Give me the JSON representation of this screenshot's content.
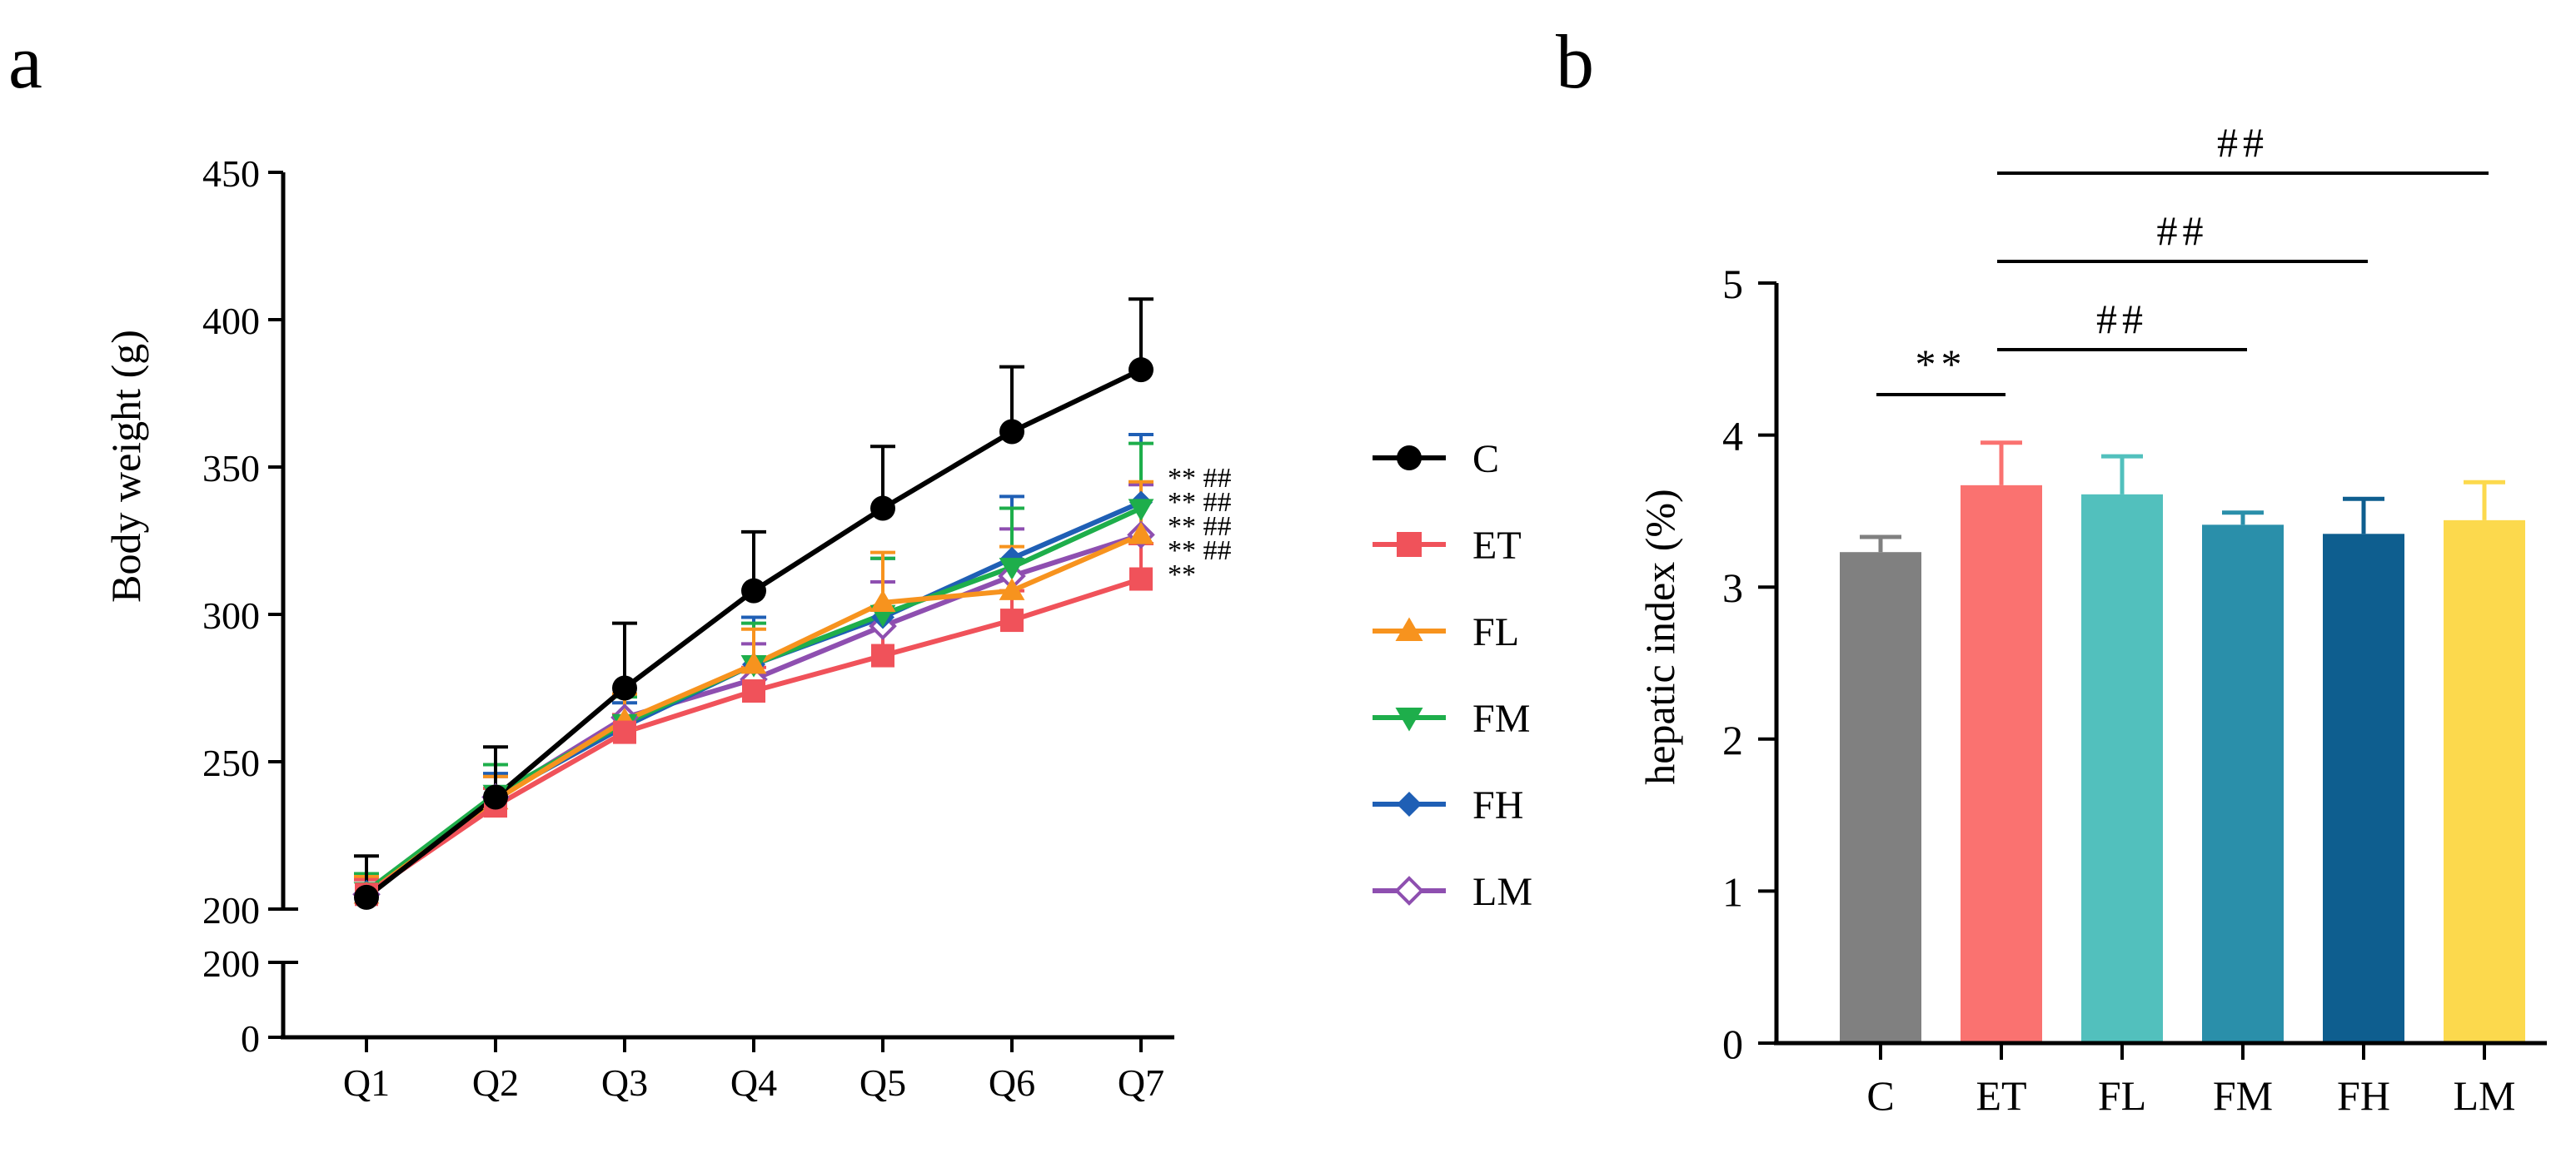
{
  "panel_a": {
    "label": "a",
    "chart_data": {
      "type": "line",
      "xlabel": "",
      "ylabel": "Body weight (g)",
      "categories": [
        "Q1",
        "Q2",
        "Q3",
        "Q4",
        "Q5",
        "Q6",
        "Q7"
      ],
      "ylim_upper": [
        200,
        450
      ],
      "ylim_lower": [
        0,
        200
      ],
      "yticks_upper": [
        "200",
        "250",
        "300",
        "350",
        "400",
        "450"
      ],
      "yticks_lower": [
        "0",
        "200"
      ],
      "legend_position": "right",
      "series": [
        {
          "name": "C",
          "color": "#000000",
          "marker": "circle",
          "values": [
            204,
            238,
            275,
            308,
            336,
            362,
            383
          ],
          "errors": [
            14,
            17,
            22,
            20,
            21,
            22,
            24
          ]
        },
        {
          "name": "ET",
          "color": "#f0525a",
          "marker": "square",
          "values": [
            205,
            235,
            260,
            274,
            286,
            298,
            312
          ],
          "errors": [
            5,
            6,
            6,
            8,
            10,
            10,
            12
          ]
        },
        {
          "name": "FL",
          "color": "#f7931e",
          "marker": "triangle-up",
          "values": [
            205,
            237,
            264,
            283,
            304,
            308,
            327
          ],
          "errors": [
            6,
            8,
            9,
            12,
            17,
            15,
            18
          ]
        },
        {
          "name": "FM",
          "color": "#1eae4b",
          "marker": "triangle-down",
          "values": [
            206,
            239,
            263,
            283,
            300,
            316,
            336
          ],
          "errors": [
            6,
            10,
            9,
            14,
            19,
            20,
            22
          ]
        },
        {
          "name": "FH",
          "color": "#1f5fb5",
          "marker": "diamond",
          "values": [
            206,
            238,
            262,
            283,
            299,
            319,
            338
          ],
          "errors": [
            6,
            8,
            8,
            16,
            20,
            21,
            23
          ]
        },
        {
          "name": "LM",
          "color": "#8e4fb0",
          "marker": "diamond-open",
          "values": [
            205,
            238,
            265,
            278,
            296,
            313,
            327
          ],
          "errors": [
            5,
            7,
            8,
            12,
            15,
            16,
            17
          ]
        }
      ],
      "annotations": [
        {
          "text": "** ##",
          "near_series": "FH"
        },
        {
          "text": "** ##",
          "near_series": "FM"
        },
        {
          "text": "** ##",
          "near_series": "FL"
        },
        {
          "text": "** ##",
          "near_series": "LM"
        },
        {
          "text": "**",
          "near_series": "ET"
        }
      ]
    }
  },
  "panel_b": {
    "label": "b",
    "chart_data": {
      "type": "bar",
      "xlabel": "",
      "ylabel": "hepatic index (%)",
      "categories": [
        "C",
        "ET",
        "FL",
        "FM",
        "FH",
        "LM"
      ],
      "values": [
        3.23,
        3.67,
        3.61,
        3.41,
        3.35,
        3.44
      ],
      "errors": [
        0.1,
        0.28,
        0.25,
        0.08,
        0.23,
        0.25
      ],
      "colors": [
        "#808080",
        "#fa7270",
        "#52c0bd",
        "#2a8faa",
        "#0e5e8f",
        "#fcd94d"
      ],
      "ylim": [
        0,
        5
      ],
      "yticks": [
        "0",
        "1",
        "2",
        "3",
        "4",
        "5"
      ],
      "brackets": [
        {
          "from": "C",
          "to": "ET",
          "text": "**"
        },
        {
          "from": "ET",
          "to": "FM",
          "text": "##"
        },
        {
          "from": "ET",
          "to": "FH",
          "text": "##"
        },
        {
          "from": "ET",
          "to": "LM",
          "text": "##"
        }
      ]
    }
  }
}
